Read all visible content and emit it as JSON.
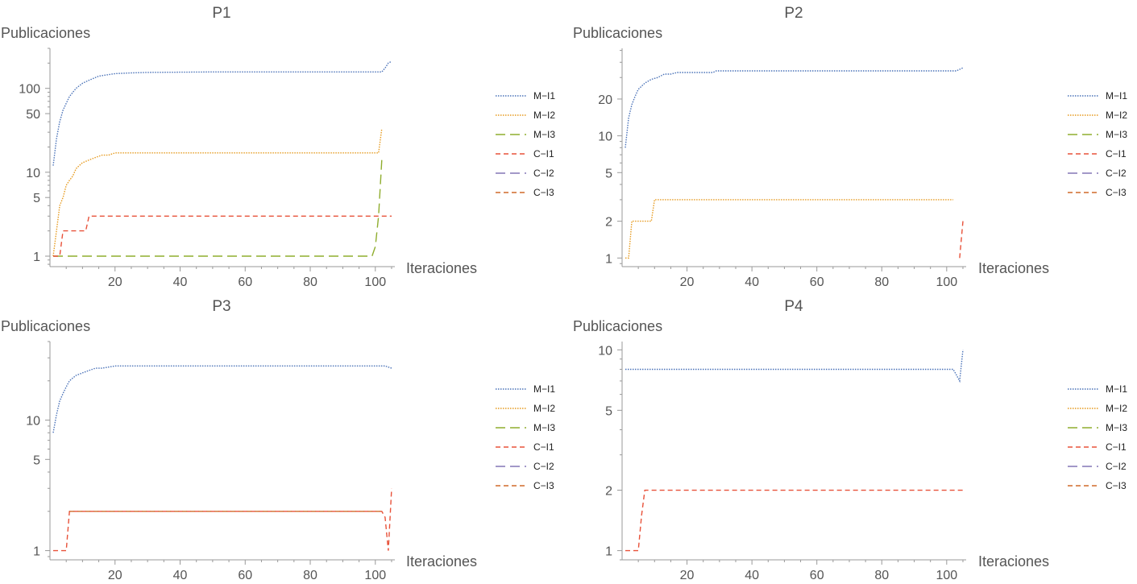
{
  "x_label": "Iteraciones",
  "y_label": "Publicaciones",
  "legend_entries": [
    "M−I1",
    "M−I2",
    "M−I3",
    "C−I1",
    "C−I2",
    "C−I3"
  ],
  "series_styles": [
    {
      "color": "#4a72b8",
      "dash": "1.5,1.5"
    },
    {
      "color": "#e69a1e",
      "dash": "1.5,1.5"
    },
    {
      "color": "#8fad2e",
      "dash": "12,6"
    },
    {
      "color": "#e8523a",
      "dash": "6,4"
    },
    {
      "color": "#8476b6",
      "dash": "12,6"
    },
    {
      "color": "#d06a2a",
      "dash": "6,4"
    }
  ],
  "chart_data": [
    {
      "type": "line",
      "title": "P1",
      "xlabel": "Iteraciones",
      "ylabel": "Publicaciones",
      "y_scale": "log",
      "xlim": [
        0,
        106
      ],
      "ylim": [
        0.75,
        300
      ],
      "x_ticks": [
        20,
        40,
        60,
        80,
        100
      ],
      "y_ticks": [
        1,
        5,
        10,
        50,
        100
      ],
      "legend_position": "right",
      "series": [
        {
          "name": "M−I1",
          "x": [
            1,
            2,
            3,
            4,
            6,
            8,
            10,
            12,
            15,
            20,
            25,
            30,
            40,
            50,
            60,
            80,
            100,
            101,
            102,
            103,
            104,
            105
          ],
          "y": [
            12,
            25,
            40,
            55,
            80,
            100,
            115,
            125,
            140,
            150,
            153,
            155,
            156,
            157,
            157,
            157,
            157,
            157,
            157,
            175,
            200,
            210
          ]
        },
        {
          "name": "M−I2",
          "x": [
            1,
            2,
            3,
            4,
            5,
            6,
            7,
            8,
            9,
            10,
            12,
            14,
            16,
            18,
            20,
            25,
            30,
            50,
            80,
            100,
            101,
            102
          ],
          "y": [
            1,
            2,
            4,
            5,
            7,
            8,
            9,
            11,
            12,
            13,
            14,
            15,
            16,
            16,
            17,
            17,
            17,
            17,
            17,
            17,
            17,
            33
          ]
        },
        {
          "name": "M−I3",
          "x": [
            1,
            20,
            40,
            60,
            80,
            99,
            100,
            101,
            102
          ],
          "y": [
            1,
            1,
            1,
            1,
            1,
            1,
            1.3,
            3,
            14
          ]
        },
        {
          "name": "C−I1",
          "x": [
            1,
            3,
            4,
            11,
            12,
            30,
            60,
            105
          ],
          "y": [
            1,
            1,
            2,
            2,
            3,
            3,
            3,
            3
          ]
        },
        {
          "name": "C−I2",
          "x": [],
          "y": []
        },
        {
          "name": "C−I3",
          "x": [],
          "y": []
        }
      ]
    },
    {
      "type": "line",
      "title": "P2",
      "xlabel": "Iteraciones",
      "ylabel": "Publicaciones",
      "y_scale": "log",
      "xlim": [
        0,
        106
      ],
      "ylim": [
        0.85,
        52
      ],
      "x_ticks": [
        20,
        40,
        60,
        80,
        100
      ],
      "y_ticks": [
        1,
        2,
        5,
        10,
        20
      ],
      "legend_position": "right",
      "series": [
        {
          "name": "M−I1",
          "x": [
            1,
            2,
            3,
            4,
            5,
            7,
            9,
            11,
            13,
            15,
            17,
            20,
            25,
            28,
            29,
            50,
            80,
            100,
            103,
            105
          ],
          "y": [
            8,
            14,
            18,
            21,
            24,
            27,
            29,
            30,
            32,
            32,
            33,
            33,
            33,
            33,
            34,
            34,
            34,
            34,
            34,
            36
          ]
        },
        {
          "name": "M−I2",
          "x": [
            1,
            2,
            3,
            4,
            8,
            9,
            10,
            11,
            20,
            50,
            80,
            102
          ],
          "y": [
            1,
            1,
            2,
            2,
            2,
            2,
            3,
            3,
            3,
            3,
            3,
            3
          ]
        },
        {
          "name": "M−I3",
          "x": [],
          "y": []
        },
        {
          "name": "C−I1",
          "x": [
            104,
            105
          ],
          "y": [
            1,
            2
          ]
        },
        {
          "name": "C−I2",
          "x": [],
          "y": []
        },
        {
          "name": "C−I3",
          "x": [],
          "y": []
        }
      ]
    },
    {
      "type": "line",
      "title": "P3",
      "xlabel": "Iteraciones",
      "ylabel": "Publicaciones",
      "y_scale": "log",
      "xlim": [
        0,
        106
      ],
      "ylim": [
        0.85,
        40
      ],
      "x_ticks": [
        20,
        40,
        60,
        80,
        100
      ],
      "y_ticks": [
        1,
        5,
        10
      ],
      "legend_position": "right",
      "series": [
        {
          "name": "M−I1",
          "x": [
            1,
            2,
            3,
            4,
            5,
            6,
            7,
            8,
            10,
            12,
            14,
            16,
            20,
            30,
            50,
            80,
            100,
            102,
            103,
            104,
            105
          ],
          "y": [
            8,
            11,
            14,
            16,
            18,
            20,
            21,
            22,
            23,
            24,
            25,
            25,
            26,
            26,
            26,
            26,
            26,
            26,
            26,
            25.5,
            25
          ]
        },
        {
          "name": "M−I2",
          "x": [],
          "y": []
        },
        {
          "name": "M−I3",
          "x": [],
          "y": []
        },
        {
          "name": "C−I1",
          "x": [
            1,
            5,
            6,
            20,
            50,
            80,
            102,
            103,
            104,
            105
          ],
          "y": [
            1,
            1,
            2,
            2,
            2,
            2,
            2,
            1.8,
            1,
            3
          ]
        },
        {
          "name": "C−I2",
          "x": [],
          "y": []
        },
        {
          "name": "C−I3",
          "x": [
            6,
            20,
            50,
            80,
            102
          ],
          "y": [
            2,
            2,
            2,
            2,
            2
          ]
        }
      ]
    },
    {
      "type": "line",
      "title": "P4",
      "xlabel": "Iteraciones",
      "ylabel": "Publicaciones",
      "y_scale": "log",
      "xlim": [
        0,
        106
      ],
      "ylim": [
        0.9,
        11
      ],
      "x_ticks": [
        20,
        40,
        60,
        80,
        100
      ],
      "y_ticks": [
        1,
        2,
        5,
        10
      ],
      "legend_position": "right",
      "series": [
        {
          "name": "M−I1",
          "x": [
            1,
            20,
            40,
            60,
            80,
            100,
            102,
            103,
            104,
            105
          ],
          "y": [
            8,
            8,
            8,
            8,
            8,
            8,
            8,
            7.5,
            7,
            10
          ]
        },
        {
          "name": "M−I2",
          "x": [],
          "y": []
        },
        {
          "name": "M−I3",
          "x": [],
          "y": []
        },
        {
          "name": "C−I1",
          "x": [
            1,
            5,
            6,
            7,
            20,
            50,
            80,
            105
          ],
          "y": [
            1,
            1,
            1.5,
            2,
            2,
            2,
            2,
            2
          ]
        },
        {
          "name": "C−I2",
          "x": [],
          "y": []
        },
        {
          "name": "C−I3",
          "x": [],
          "y": []
        }
      ]
    }
  ]
}
